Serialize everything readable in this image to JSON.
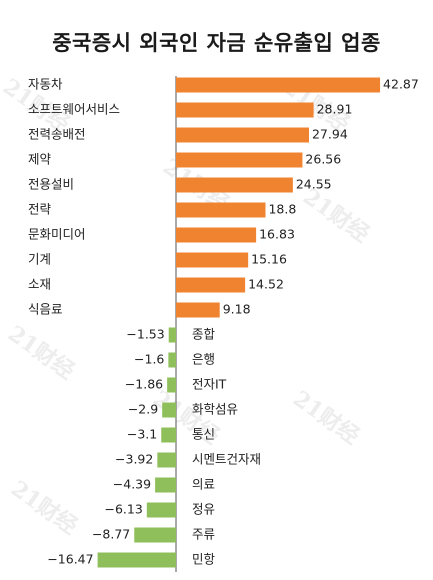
{
  "title": "중국증시 외국인 자금 순유출입 업종",
  "watermark": "21财经",
  "colors": {
    "positive": "#f0832f",
    "negative": "#8fbf5a",
    "axis": "#555555",
    "text": "#222222"
  },
  "chart_data": {
    "type": "bar",
    "orientation": "horizontal",
    "title": "중국증시 외국인 자금 순유출입 업종",
    "categories": [
      "자동차",
      "소프트웨어서비스",
      "전력송배전",
      "제약",
      "전용설비",
      "전략",
      "문화미디어",
      "기계",
      "소재",
      "식음료",
      "종합",
      "은행",
      "전자IT",
      "화학섬유",
      "통신",
      "시멘트건자재",
      "의료",
      "정유",
      "주류",
      "민항"
    ],
    "values": [
      42.87,
      28.91,
      27.94,
      26.56,
      24.55,
      18.8,
      16.83,
      15.16,
      14.52,
      9.18,
      -1.53,
      -1.6,
      -1.86,
      -2.9,
      -3.1,
      -3.92,
      -4.39,
      -6.13,
      -8.77,
      -16.47
    ],
    "value_labels": [
      "42.87",
      "28.91",
      "27.94",
      "26.56",
      "24.55",
      "18.8",
      "16.83",
      "15.16",
      "14.52",
      "9.18",
      "−1.53",
      "−1.6",
      "−1.86",
      "−2.9",
      "−3.1",
      "−3.92",
      "−4.39",
      "−6.13",
      "−8.77",
      "−16.47"
    ],
    "xlim": [
      -16.47,
      42.87
    ],
    "grid": false,
    "legend": "none"
  }
}
